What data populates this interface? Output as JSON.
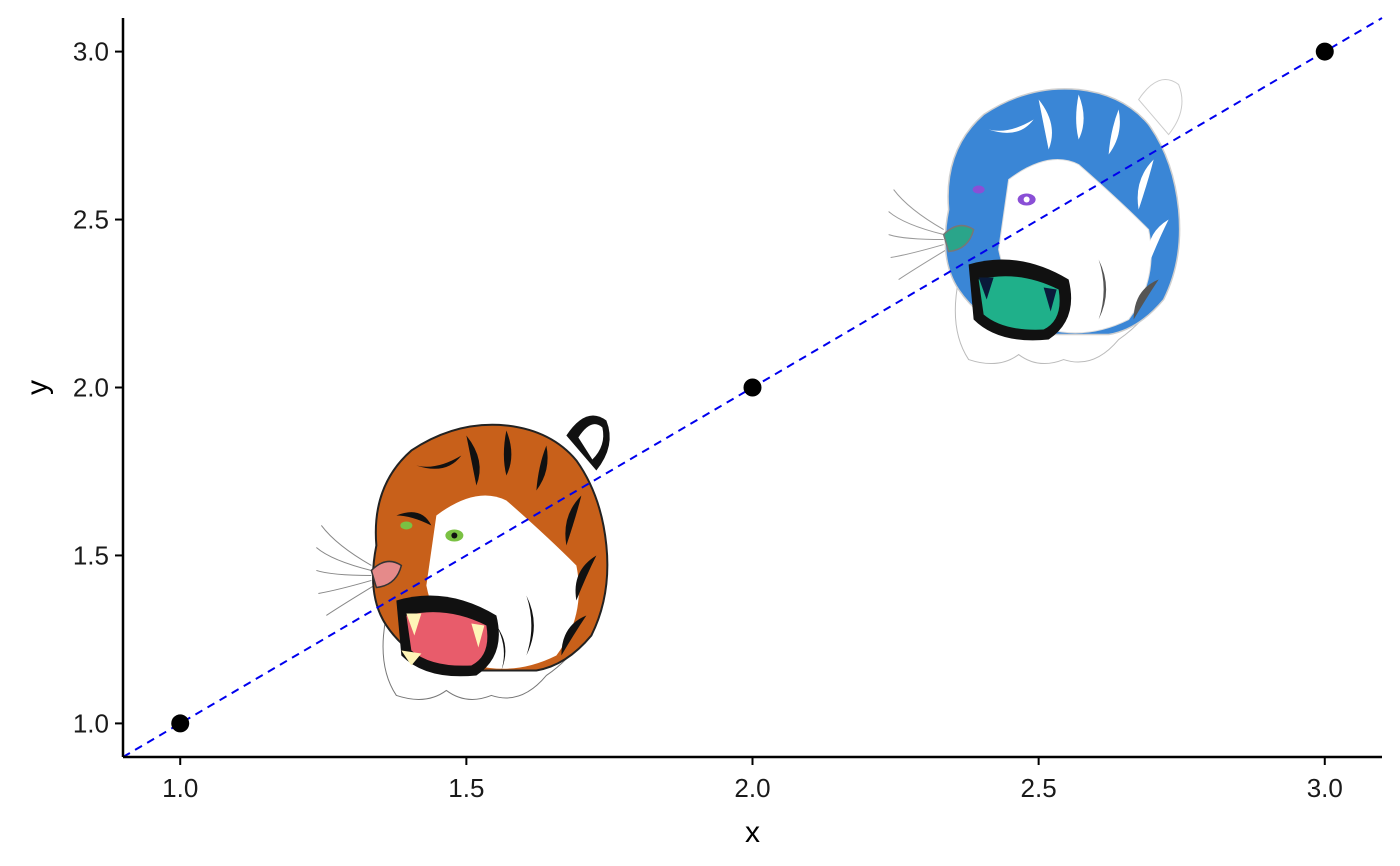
{
  "chart_data": {
    "type": "scatter",
    "title": "",
    "xlabel": "x",
    "ylabel": "y",
    "xlim": [
      0.9,
      3.1
    ],
    "ylim": [
      0.9,
      3.1
    ],
    "x_ticks": [
      1.0,
      1.5,
      2.0,
      2.5,
      3.0
    ],
    "y_ticks": [
      1.0,
      1.5,
      2.0,
      2.5,
      3.0
    ],
    "x_tick_labels": [
      "1.0",
      "1.5",
      "2.0",
      "2.5",
      "3.0"
    ],
    "y_tick_labels": [
      "1.0",
      "1.5",
      "2.0",
      "2.5",
      "3.0"
    ],
    "grid": false,
    "points": [
      {
        "x": 1.0,
        "y": 1.0
      },
      {
        "x": 2.0,
        "y": 2.0
      },
      {
        "x": 3.0,
        "y": 3.0
      }
    ],
    "reference_line": {
      "slope": 1,
      "intercept": 0,
      "style": "dashed",
      "color": "#0000ee"
    },
    "images": [
      {
        "name": "tiger-orange",
        "x": 1.5,
        "y": 1.5,
        "palette": "orange"
      },
      {
        "name": "tiger-blue",
        "x": 2.5,
        "y": 2.5,
        "palette": "blue"
      }
    ],
    "colors": {
      "point": "#000000",
      "axis": "#000000",
      "reference_line": "#0000ee"
    }
  }
}
